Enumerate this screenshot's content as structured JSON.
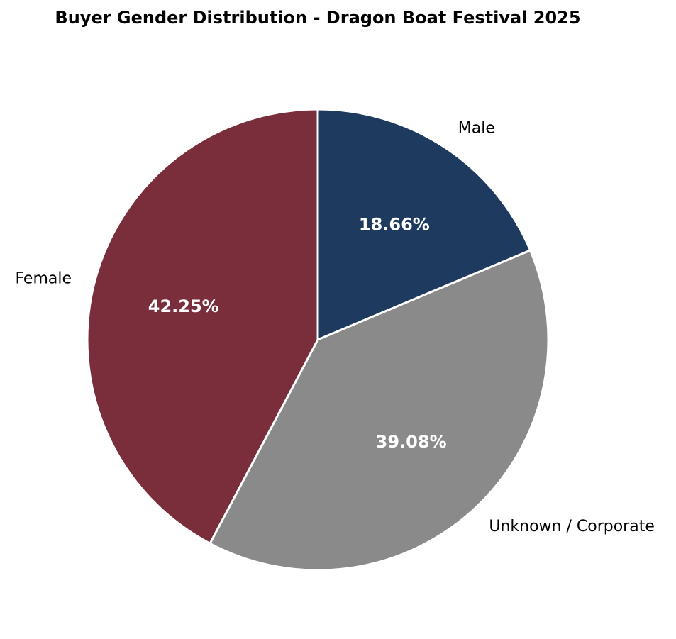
{
  "chart_data": {
    "type": "pie",
    "title": "Buyer Gender Distribution - Dragon Boat Festival 2025",
    "slices": [
      {
        "label": "Male",
        "value": 18.66,
        "pct_label": "18.66%",
        "color": "#1f3a5f"
      },
      {
        "label": "Unknown / Corporate",
        "value": 39.08,
        "pct_label": "39.08%",
        "color": "#8a8a8a"
      },
      {
        "label": "Female",
        "value": 42.25,
        "pct_label": "42.25%",
        "color": "#7a2d3a"
      }
    ],
    "start_angle": "top (12 o'clock)",
    "direction": "clockwise",
    "edge_color": "#ffffff",
    "legend": "none"
  }
}
